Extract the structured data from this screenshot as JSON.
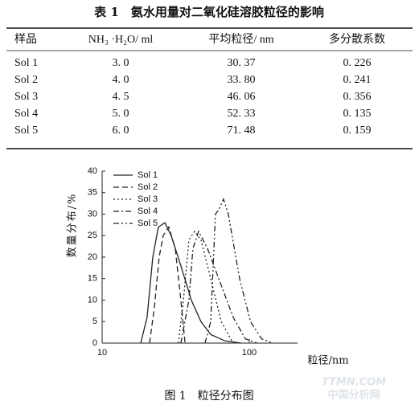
{
  "table": {
    "title": "表 1　氨水用量对二氧化硅溶胶粒径的影响",
    "columns": [
      "样品",
      "NH₃ ·H₂O/ ml",
      "平均粒径/ nm",
      "多分散系数"
    ],
    "rows": [
      [
        "Sol 1",
        "3. 0",
        "30. 37",
        "0. 226"
      ],
      [
        "Sol 2",
        "4. 0",
        "33. 80",
        "0. 241"
      ],
      [
        "Sol 3",
        "4. 5",
        "46. 06",
        "0. 356"
      ],
      [
        "Sol 4",
        "5. 0",
        "52. 33",
        "0. 135"
      ],
      [
        "Sol 5",
        "6. 0",
        "71. 48",
        "0. 159"
      ]
    ]
  },
  "chart_data": {
    "type": "line",
    "xlabel": "粒径/nm",
    "ylabel": "数量分布/%",
    "log_x": true,
    "xlim": [
      10,
      213
    ],
    "xticks": [
      10,
      100
    ],
    "ylim": [
      0,
      40
    ],
    "yticks": [
      0,
      5,
      10,
      15,
      20,
      25,
      30,
      35,
      40
    ],
    "legend": "top-left",
    "series": [
      {
        "name": "Sol 1",
        "color": "#222222",
        "dash": "none",
        "x": [
          18.3,
          20.2,
          22.1,
          24.1,
          26.7,
          29.5,
          34.3,
          40.4,
          47.0,
          54.7,
          68.5,
          88.2
        ],
        "values": [
          0,
          6,
          20,
          27,
          28,
          25,
          18,
          10,
          5,
          2,
          0.5,
          0
        ]
      },
      {
        "name": "Sol 2",
        "color": "#222222",
        "dash": "7 4",
        "x": [
          21,
          22.6,
          24.4,
          26,
          28.4,
          31.4,
          34.3,
          36.6
        ],
        "values": [
          0,
          8,
          20,
          25,
          27,
          22,
          10,
          0
        ]
      },
      {
        "name": "Sol 3",
        "color": "#222222",
        "dash": "2 3",
        "x": [
          33,
          35.7,
          38.9,
          42.5,
          47,
          54.7,
          64.5,
          77.8
        ],
        "values": [
          0,
          10,
          24,
          26,
          24,
          15,
          5,
          0
        ]
      },
      {
        "name": "Sol 4",
        "color": "#222222",
        "dash": "7 3 2 3",
        "x": [
          34.3,
          38.9,
          41.4,
          45.3,
          52,
          62,
          77.8,
          94,
          113
        ],
        "values": [
          0,
          10,
          22,
          26,
          22,
          15,
          6,
          1,
          0
        ]
      },
      {
        "name": "Sol 5",
        "color": "#222222",
        "dash": "7 3 2 3 2 3",
        "x": [
          50,
          54.7,
          58.9,
          62,
          66.8,
          72.1,
          86,
          102,
          121,
          145
        ],
        "values": [
          0,
          5,
          30,
          31,
          33.5,
          30,
          15,
          5,
          1,
          0
        ]
      }
    ]
  },
  "caption": "图 1　粒径分布图",
  "watermark": [
    "TTMN.COM",
    "中国分析网"
  ]
}
